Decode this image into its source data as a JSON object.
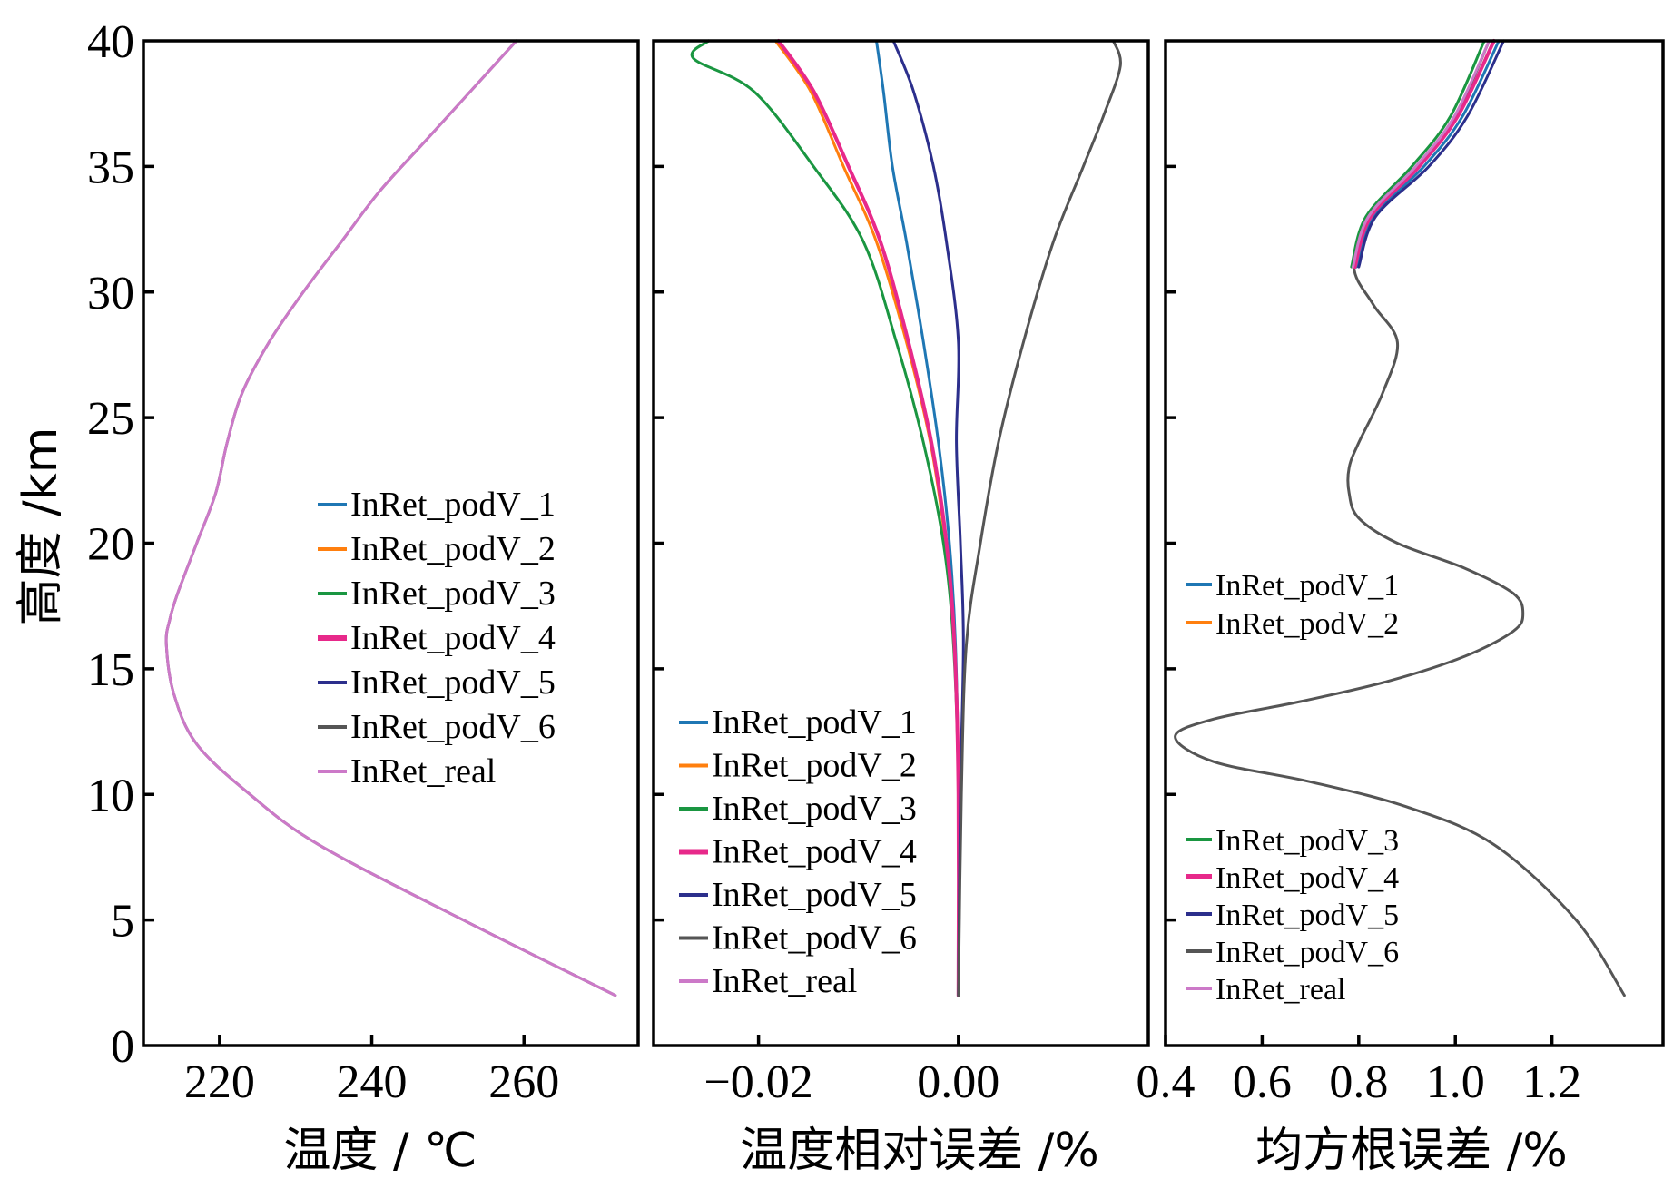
{
  "colors": {
    "InRet_podV_1": "#1f77b4",
    "InRet_podV_2": "#ff7f0e",
    "InRet_podV_3": "#1a9641",
    "InRet_podV_4": "#e7298a",
    "InRet_podV_5": "#2c2f8c",
    "InRet_podV_6": "#555555",
    "InRet_real": "#cc79c8"
  },
  "chart_data": [
    {
      "type": "line",
      "id": "temperature",
      "xlabel": "温度 / ℃",
      "ylabel": "高度 /km",
      "xlim": [
        210,
        275
      ],
      "ylim": [
        0,
        40
      ],
      "xticks": [
        "220",
        "240",
        "260"
      ],
      "xtick_values": [
        220,
        240,
        260
      ],
      "yticks": [
        "0",
        "5",
        "10",
        "15",
        "20",
        "25",
        "30",
        "35",
        "40"
      ],
      "ytick_values": [
        0,
        5,
        10,
        15,
        20,
        25,
        30,
        35,
        40
      ],
      "legend": [
        "InRet_podV_1",
        "InRet_podV_2",
        "InRet_podV_3",
        "InRet_podV_4",
        "InRet_podV_5",
        "InRet_podV_6",
        "InRet_real"
      ],
      "legend_position": "center-right",
      "series": [
        {
          "name": "InRet_podV_6",
          "y": [
            2,
            5,
            8,
            10,
            12,
            14,
            16,
            17,
            18,
            20,
            22,
            24,
            26,
            28,
            30,
            32,
            34,
            36,
            38,
            40
          ],
          "x": [
            272,
            252,
            233,
            224,
            217,
            214,
            213,
            213.5,
            214.5,
            217,
            219.5,
            221,
            223,
            226.5,
            231,
            236,
            241,
            247,
            253,
            259
          ]
        },
        {
          "name": "InRet_real",
          "y": [
            2,
            5,
            8,
            10,
            12,
            14,
            16,
            17,
            18,
            20,
            22,
            24,
            26,
            28,
            30,
            32,
            34,
            36,
            38,
            40
          ],
          "x": [
            272,
            252,
            233,
            224,
            217,
            214,
            213,
            213.5,
            214.5,
            217,
            219.5,
            221,
            223,
            226.5,
            231,
            236,
            241,
            247,
            253,
            259
          ]
        }
      ]
    },
    {
      "type": "line",
      "id": "relative_error",
      "xlabel": "温度相对误差 /%",
      "xlim": [
        -0.0305,
        0.019
      ],
      "ylim": [
        0,
        40
      ],
      "xticks": [
        "−0.02",
        "0.00"
      ],
      "xtick_values": [
        -0.02,
        0
      ],
      "legend": [
        "InRet_podV_1",
        "InRet_podV_2",
        "InRet_podV_3",
        "InRet_podV_4",
        "InRet_podV_5",
        "InRet_podV_6",
        "InRet_real"
      ],
      "legend_position": "lower-left",
      "series": [
        {
          "name": "InRet_podV_1",
          "y": [
            2,
            10,
            16,
            20,
            24,
            28,
            32,
            35,
            38,
            40
          ],
          "x": [
            0,
            0,
            -0.0003,
            -0.0009,
            -0.002,
            -0.0035,
            -0.0052,
            -0.0066,
            -0.0075,
            -0.0082
          ]
        },
        {
          "name": "InRet_podV_2",
          "y": [
            2,
            10,
            16,
            20,
            24,
            28,
            32,
            35,
            38,
            40
          ],
          "x": [
            0,
            0,
            -0.0004,
            -0.0013,
            -0.0028,
            -0.0052,
            -0.0082,
            -0.0115,
            -0.0148,
            -0.0183
          ]
        },
        {
          "name": "InRet_podV_3",
          "y": [
            2,
            10,
            16,
            20,
            24,
            28,
            32,
            35,
            38,
            39.3,
            40
          ],
          "x": [
            0,
            0,
            -0.0005,
            -0.0015,
            -0.0035,
            -0.0062,
            -0.0095,
            -0.0145,
            -0.0205,
            -0.0265,
            -0.025
          ]
        },
        {
          "name": "InRet_podV_4",
          "y": [
            2,
            10,
            16,
            20,
            24,
            28,
            32,
            35,
            38,
            40
          ],
          "x": [
            0,
            0,
            -0.0004,
            -0.0012,
            -0.0027,
            -0.005,
            -0.0078,
            -0.011,
            -0.0145,
            -0.018
          ]
        },
        {
          "name": "InRet_podV_5",
          "y": [
            2,
            10,
            16,
            20,
            24,
            28,
            32,
            35,
            38,
            40
          ],
          "x": [
            0,
            0.0002,
            0.0005,
            0.0002,
            -0.0002,
            0,
            -0.0012,
            -0.0025,
            -0.0045,
            -0.0065
          ]
        },
        {
          "name": "InRet_podV_6",
          "y": [
            2,
            10,
            16,
            20,
            24,
            28,
            32,
            35,
            37,
            39,
            40
          ],
          "x": [
            0,
            0.0003,
            0.0008,
            0.0022,
            0.004,
            0.0065,
            0.0095,
            0.0125,
            0.0145,
            0.0162,
            0.0155
          ]
        }
      ]
    },
    {
      "type": "line",
      "id": "rmse",
      "xlabel": "均方根误差 /%",
      "xlim": [
        0.4,
        1.43
      ],
      "ylim": [
        0,
        40
      ],
      "xticks": [
        "0.4",
        "0.6",
        "0.8",
        "1.0",
        "1.2"
      ],
      "xtick_values": [
        0.4,
        0.6,
        0.8,
        1.0,
        1.2
      ],
      "legend_groups": [
        [
          "InRet_podV_1",
          "InRet_podV_2"
        ],
        [
          "InRet_podV_3",
          "InRet_podV_4",
          "InRet_podV_5",
          "InRet_podV_6",
          "InRet_real"
        ]
      ],
      "legend_position": "left (split upper and lower)",
      "series": [
        {
          "name": "InRet_podV_6",
          "y": [
            2,
            5,
            8,
            9.5,
            10.5,
            11.3,
            12.3,
            13,
            13.7,
            14.5,
            15.5,
            16.5,
            17.2,
            18,
            19,
            20,
            21,
            22,
            23,
            24,
            26,
            28,
            29.5,
            31,
            33,
            35,
            37,
            40
          ],
          "x": [
            1.35,
            1.25,
            1.08,
            0.9,
            0.7,
            0.5,
            0.42,
            0.5,
            0.68,
            0.86,
            1.02,
            1.12,
            1.14,
            1.12,
            1.02,
            0.88,
            0.8,
            0.78,
            0.78,
            0.8,
            0.85,
            0.88,
            0.83,
            0.79,
            0.82,
            0.92,
            1.0,
            1.07
          ]
        },
        {
          "name": "InRet_podV_1",
          "y": [
            31,
            33,
            35,
            37,
            40
          ],
          "x": [
            0.795,
            0.83,
            0.935,
            1.015,
            1.09
          ]
        },
        {
          "name": "InRet_podV_3",
          "y": [
            31,
            33,
            35,
            37,
            40
          ],
          "x": [
            0.785,
            0.815,
            0.91,
            0.99,
            1.06
          ]
        },
        {
          "name": "InRet_podV_4",
          "y": [
            31,
            33,
            35,
            37,
            40
          ],
          "x": [
            0.792,
            0.825,
            0.925,
            1.005,
            1.08
          ]
        },
        {
          "name": "InRet_podV_5",
          "y": [
            31,
            33,
            35,
            37,
            40
          ],
          "x": [
            0.8,
            0.835,
            0.945,
            1.025,
            1.1
          ]
        },
        {
          "name": "InRet_real",
          "y": [
            31,
            33,
            35,
            37,
            40
          ],
          "x": [
            0.788,
            0.82,
            0.918,
            0.998,
            1.07
          ]
        }
      ]
    }
  ]
}
